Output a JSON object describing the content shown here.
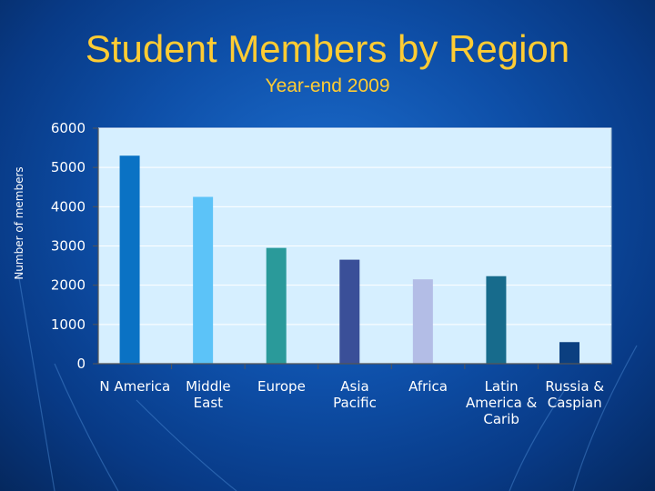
{
  "chart_data": {
    "type": "bar",
    "title": "Student Members by Region",
    "subtitle": "Year-end 2009",
    "ylabel": "Number of members",
    "xlabel": "",
    "ylim": [
      0,
      6000
    ],
    "yticks": [
      0,
      1000,
      2000,
      3000,
      4000,
      5000,
      6000
    ],
    "grid": true,
    "legend": "none",
    "categories": [
      [
        "N America"
      ],
      [
        "Middle",
        "East"
      ],
      [
        "Europe"
      ],
      [
        "Asia",
        "Pacific"
      ],
      [
        "Africa"
      ],
      [
        "Latin",
        "America &",
        "Carib"
      ],
      [
        "Russia &",
        "Caspian"
      ]
    ],
    "values": [
      5300,
      4250,
      2950,
      2650,
      2150,
      2230,
      550
    ],
    "colors": [
      "#0a72c4",
      "#5cc3f8",
      "#2a9a9a",
      "#3a4f98",
      "#b3bde6",
      "#176b8c",
      "#0b3f80"
    ],
    "plot_background": "#d6efff"
  }
}
